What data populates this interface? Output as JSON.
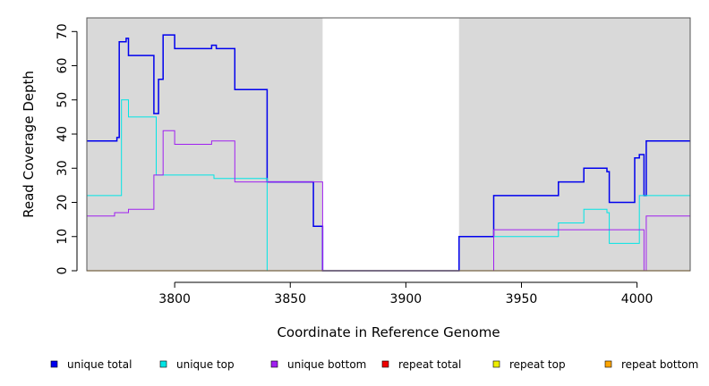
{
  "chart_data": {
    "type": "line",
    "step": true,
    "xlabel": "Coordinate in Reference Genome",
    "ylabel": "Read Coverage Depth",
    "xlim": [
      3762,
      4023
    ],
    "ylim": [
      0,
      74
    ],
    "xticks": [
      3800,
      3850,
      3900,
      3950,
      4000
    ],
    "yticks": [
      0,
      10,
      20,
      30,
      40,
      50,
      60,
      70
    ],
    "shaded_regions": [
      [
        3762,
        3864
      ],
      [
        3923,
        4023
      ]
    ],
    "shade_color": "#d9d9d9",
    "legend_position": "bottom",
    "series": [
      {
        "name": "unique total",
        "color": "#0000ee",
        "line_width": 1.5,
        "x": [
          3762,
          3775,
          3776,
          3779,
          3780,
          3791,
          3793,
          3795,
          3800,
          3806,
          3816,
          3818,
          3826,
          3840,
          3860,
          3864,
          3923,
          3938,
          3966,
          3977,
          3987,
          3988,
          3999,
          4001,
          4003,
          4004,
          4023
        ],
        "values": [
          38,
          39,
          67,
          68,
          63,
          46,
          56,
          69,
          65,
          65,
          66,
          65,
          53,
          26,
          13,
          0,
          10,
          22,
          26,
          30,
          29,
          20,
          33,
          34,
          22,
          38,
          38
        ]
      },
      {
        "name": "unique top",
        "color": "#00e5e5",
        "line_width": 1,
        "x": [
          3762,
          3774,
          3777,
          3780,
          3791,
          3792,
          3800,
          3817,
          3826,
          3840,
          3923,
          3938,
          3966,
          3977,
          3987,
          3988,
          3999,
          4001,
          4023
        ],
        "values": [
          22,
          22,
          50,
          45,
          45,
          28,
          28,
          27,
          27,
          0,
          0,
          10,
          14,
          18,
          17,
          8,
          8,
          22,
          22
        ]
      },
      {
        "name": "unique bottom",
        "color": "#a020f0",
        "line_width": 1,
        "x": [
          3762,
          3774,
          3777,
          3780,
          3791,
          3795,
          3800,
          3806,
          3816,
          3826,
          3840,
          3864,
          3938,
          4003,
          4004,
          4023
        ],
        "values": [
          16,
          17,
          17,
          18,
          28,
          41,
          37,
          37,
          38,
          26,
          26,
          0,
          12,
          0,
          16,
          16
        ]
      },
      {
        "name": "repeat total",
        "color": "#ee0000",
        "line_width": 1,
        "x": [
          3762,
          4023
        ],
        "values": [
          0,
          0
        ]
      },
      {
        "name": "repeat top",
        "color": "#eeee00",
        "line_width": 1,
        "x": [
          3762,
          4023
        ],
        "values": [
          0,
          0
        ]
      },
      {
        "name": "repeat bottom",
        "color": "#ffa500",
        "line_width": 1.2,
        "x": [
          3762,
          4023
        ],
        "values": [
          0,
          0
        ]
      }
    ]
  }
}
